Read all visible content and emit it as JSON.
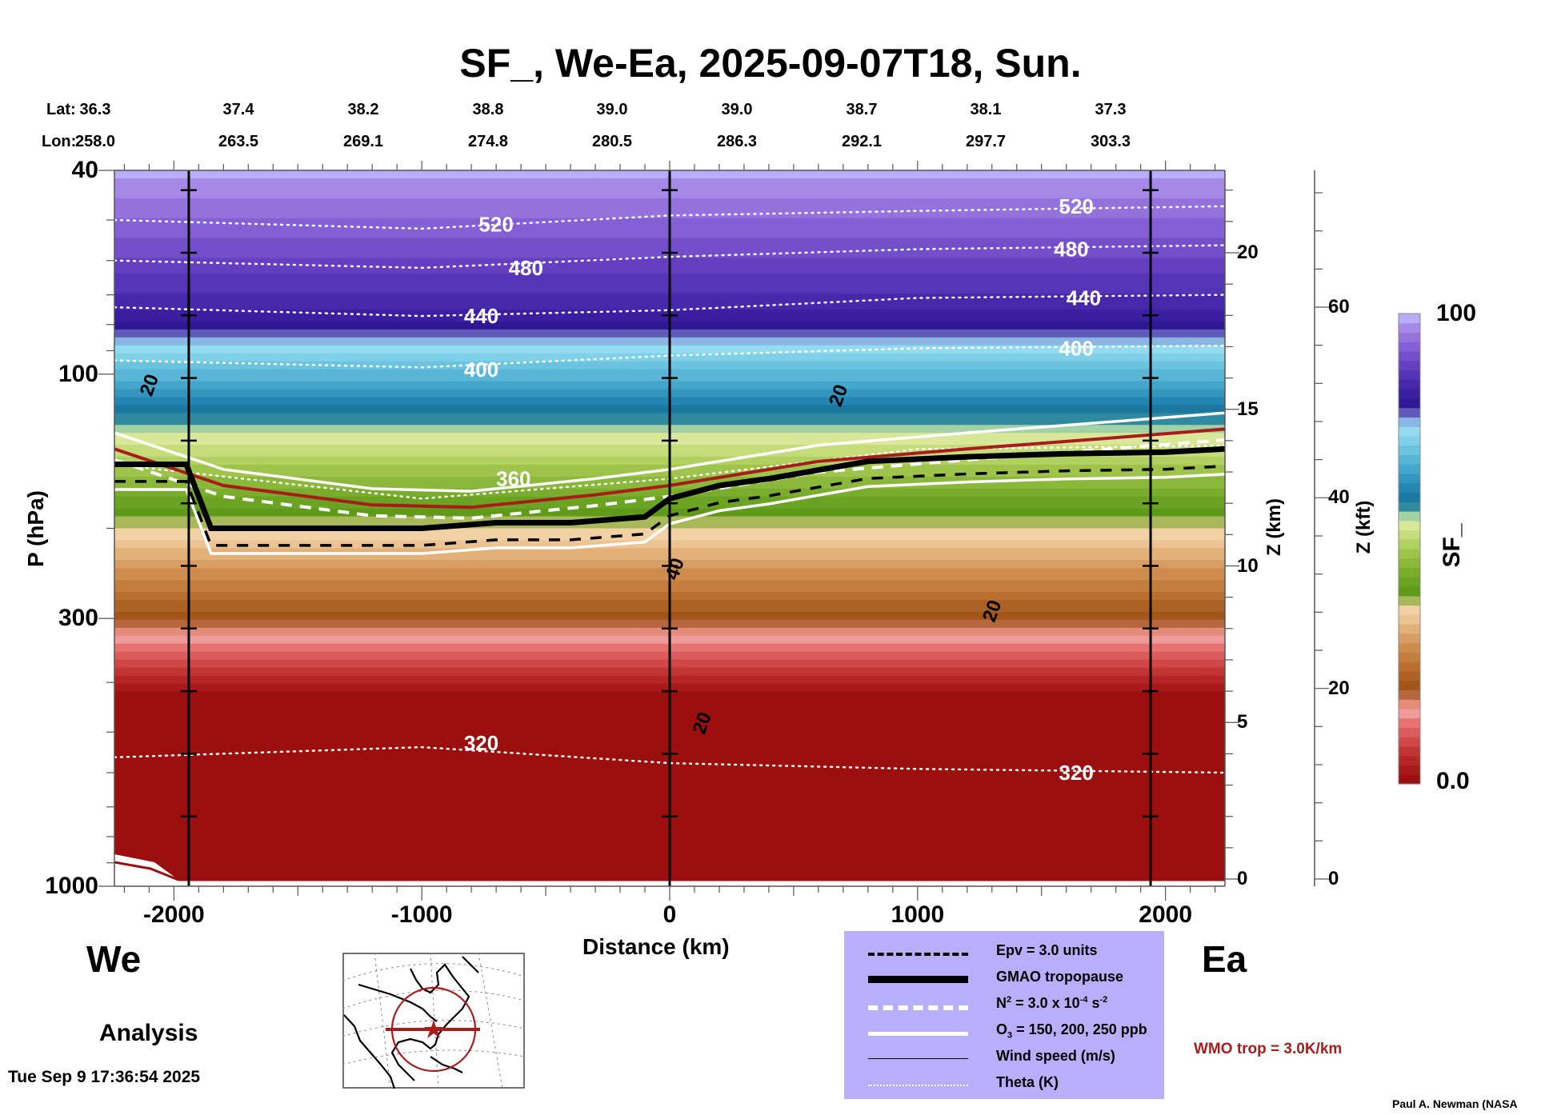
{
  "chart_data": {
    "type": "heatmap",
    "title": "SF_, We-Ea, 2025-09-07T18, Sun.",
    "xlabel": "Distance (km)",
    "ylabel": "P (hPa)",
    "y2label": "Z (km)",
    "y3label": "Z (kft)",
    "colorbar_label": "SF_",
    "xlim": [
      -2240,
      2240
    ],
    "ylim_hpa": [
      1000,
      40
    ],
    "y_scale": "log",
    "x_ticks": [
      -2000,
      -1000,
      0,
      1000,
      2000
    ],
    "x_tick_labels": [
      "-2000",
      "-1000",
      "0",
      "1000",
      "2000"
    ],
    "y_ticks": [
      40,
      100,
      300,
      1000
    ],
    "y_tick_labels": [
      "40",
      "100",
      "300",
      "1000"
    ],
    "zkm_ticks": [
      0,
      5,
      10,
      15,
      20
    ],
    "zkm_tick_labels": [
      "0",
      "5",
      "10",
      "15",
      "20"
    ],
    "zkft_ticks": [
      0,
      20,
      40,
      60
    ],
    "zkft_tick_labels": [
      "0",
      "20",
      "40",
      "60"
    ],
    "colorbar": {
      "min_label": "0.0",
      "max_label": "100",
      "range": [
        0,
        100
      ],
      "colors": [
        "#9b0f0f",
        "#a81a1a",
        "#b52525",
        "#c23535",
        "#cf4747",
        "#db5c5c",
        "#e77272",
        "#f09a9a",
        "#e58b7a",
        "#b5663c",
        "#a3561a",
        "#ac6225",
        "#b86f30",
        "#c47e3d",
        "#ce8d4e",
        "#d89d62",
        "#e3b07a",
        "#ecc393",
        "#f2d2a5",
        "#a9b858",
        "#5f9a1a",
        "#6ba323",
        "#7aad2d",
        "#8bb83b",
        "#9ec44c",
        "#b1d062",
        "#c5dc7b",
        "#d8e898",
        "#a3d1a6",
        "#2f8aa1",
        "#1b78a1",
        "#2486b2",
        "#3396bf",
        "#45a6cb",
        "#58b5d6",
        "#6bc3df",
        "#7fd0e8",
        "#93dbef",
        "#8ab6e4",
        "#5f5ab9",
        "#2e1894",
        "#3a20a0",
        "#4628aa",
        "#5534b5",
        "#6440c0",
        "#744fca",
        "#8460d4",
        "#9473dd",
        "#a688e6",
        "#b8acfb"
      ]
    },
    "lat_row": {
      "label": "Lat:",
      "values": [
        "36.3",
        "37.4",
        "38.2",
        "38.8",
        "39.0",
        "39.0",
        "38.7",
        "38.1",
        "37.3"
      ]
    },
    "lon_row": {
      "label": "Lon:",
      "values": [
        "258.0",
        "263.5",
        "269.1",
        "274.8",
        "280.5",
        "286.3",
        "292.1",
        "297.7",
        "303.3"
      ]
    },
    "label_distances_km": [
      -2240,
      -1830,
      -1420,
      -1010,
      -600,
      -190,
      220,
      630,
      1040
    ],
    "vertical_reference_lines_km": [
      -1940,
      0,
      1940
    ],
    "sf_bands": [
      {
        "name": "upper-stratosphere",
        "p_top": 40,
        "p_bottom": 75,
        "value": 100
      },
      {
        "name": "lower-stratosphere-dark",
        "p_top": 75,
        "p_bottom": 120,
        "value": 85
      },
      {
        "name": "tropopause-blue",
        "p_top": 120,
        "p_bottom": 190,
        "value": 60
      },
      {
        "name": "upper-troposphere-green",
        "p_top": 190,
        "p_bottom": 300,
        "value": 40
      },
      {
        "name": "mid-troposphere-brown",
        "p_top": 300,
        "p_bottom": 420,
        "value": 20
      },
      {
        "name": "lower-troposphere-red",
        "p_top": 420,
        "p_bottom": 1000,
        "value": 0
      }
    ],
    "theta_contours": [
      {
        "label": "520",
        "points": [
          [
            -2240,
            50
          ],
          [
            -1000,
            52
          ],
          [
            0,
            49
          ],
          [
            1000,
            48
          ],
          [
            2240,
            47
          ]
        ]
      },
      {
        "label": "480",
        "points": [
          [
            -2240,
            60
          ],
          [
            -1000,
            62
          ],
          [
            0,
            59
          ],
          [
            1000,
            57
          ],
          [
            2240,
            56
          ]
        ]
      },
      {
        "label": "440",
        "points": [
          [
            -2240,
            74
          ],
          [
            -1000,
            77
          ],
          [
            0,
            75
          ],
          [
            1000,
            71
          ],
          [
            2240,
            70
          ]
        ]
      },
      {
        "label": "400",
        "points": [
          [
            -2240,
            94
          ],
          [
            -1000,
            97
          ],
          [
            0,
            92
          ],
          [
            1000,
            89
          ],
          [
            2240,
            88
          ]
        ]
      },
      {
        "label": "360",
        "points": [
          [
            -2240,
            150
          ],
          [
            -1000,
            175
          ],
          [
            0,
            160
          ],
          [
            1000,
            140
          ],
          [
            2240,
            138
          ]
        ]
      },
      {
        "label": "320",
        "points": [
          [
            -2240,
            560
          ],
          [
            -1000,
            535
          ],
          [
            0,
            575
          ],
          [
            1000,
            590
          ],
          [
            2240,
            600
          ]
        ]
      }
    ],
    "theta_labels": [
      {
        "text": "520",
        "x_km": -700,
        "p": 51
      },
      {
        "text": "520",
        "x_km": 1640,
        "p": 47
      },
      {
        "text": "480",
        "x_km": -580,
        "p": 62
      },
      {
        "text": "480",
        "x_km": 1620,
        "p": 57
      },
      {
        "text": "440",
        "x_km": -760,
        "p": 77
      },
      {
        "text": "440",
        "x_km": 1670,
        "p": 71
      },
      {
        "text": "400",
        "x_km": -760,
        "p": 98
      },
      {
        "text": "400",
        "x_km": 1640,
        "p": 89
      },
      {
        "text": "360",
        "x_km": -630,
        "p": 160
      },
      {
        "text": "320",
        "x_km": -760,
        "p": 525
      },
      {
        "text": "320",
        "x_km": 1640,
        "p": 600
      }
    ],
    "tropopause_gmao_points": [
      [
        -2240,
        150
      ],
      [
        -1950,
        150
      ],
      [
        -1850,
        200
      ],
      [
        -1500,
        200
      ],
      [
        -1000,
        200
      ],
      [
        -700,
        195
      ],
      [
        -400,
        195
      ],
      [
        -100,
        190
      ],
      [
        0,
        175
      ],
      [
        200,
        165
      ],
      [
        400,
        160
      ],
      [
        800,
        148
      ],
      [
        1200,
        145
      ],
      [
        1600,
        143
      ],
      [
        2000,
        142
      ],
      [
        2240,
        140
      ]
    ],
    "wmo_trop_points": [
      [
        -2240,
        140
      ],
      [
        -1800,
        165
      ],
      [
        -1200,
        180
      ],
      [
        -800,
        182
      ],
      [
        -300,
        172
      ],
      [
        0,
        165
      ],
      [
        600,
        148
      ],
      [
        1200,
        140
      ],
      [
        1800,
        133
      ],
      [
        2240,
        128
      ]
    ],
    "wind_speed_labels": [
      {
        "text": "20",
        "x_km": -2100,
        "p": 105
      },
      {
        "text": "20",
        "x_km": 680,
        "p": 110
      },
      {
        "text": "20",
        "x_km": 1300,
        "p": 290
      },
      {
        "text": "20",
        "x_km": 130,
        "p": 480
      },
      {
        "text": "40",
        "x_km": 20,
        "p": 240
      }
    ],
    "direction_labels": {
      "left": "We",
      "right": "Ea"
    },
    "mode_label": "Analysis",
    "legend": {
      "items": [
        {
          "key": "epv",
          "label": "Epv = 3.0 units",
          "style": "black-dashed"
        },
        {
          "key": "gmao-tropopause",
          "label": "GMAO tropopause",
          "style": "black-thick"
        },
        {
          "key": "n2",
          "label_main": "N",
          "label_sup1": "2",
          "label_mid": " = 3.0 x 10",
          "label_sup2": "-4",
          "label_unit": " s",
          "label_sup3": "-2",
          "style": "white-dashed"
        },
        {
          "key": "o3",
          "label_main": "O",
          "label_sub": "3",
          "label_rest": " = 150, 200, 250 ppb",
          "style": "white-solid"
        },
        {
          "key": "wind",
          "label": "Wind speed (m/s)",
          "style": "thin-black"
        },
        {
          "key": "theta",
          "label": "Theta (K)",
          "style": "white-dotted"
        }
      ]
    },
    "wmo_note": "WMO trop = 3.0K/km",
    "timestamp": "Tue Sep  9 17:36:54 2025",
    "credit": "Paul A. Newman (NASA"
  },
  "colors": {
    "wmo_red": "#a81c1c",
    "legend_bg": "#b9aefa",
    "ground_red": "#9b0f0f"
  }
}
